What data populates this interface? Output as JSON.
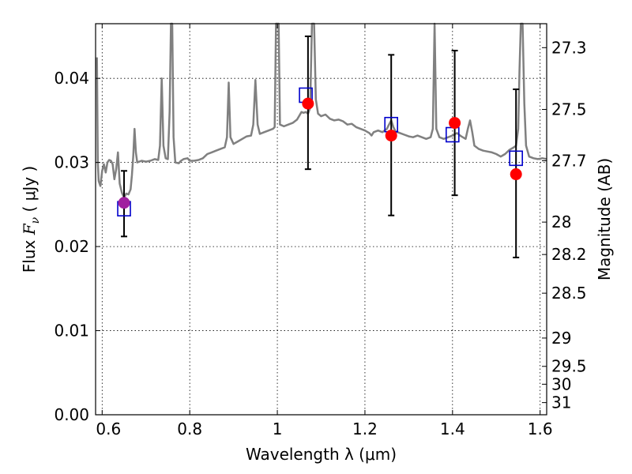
{
  "chart_data": {
    "type": "scatter",
    "xlabel": "Wavelength  λ (μm)",
    "ylabel_prefix": "Flux  ",
    "ylabel_symbol": "F",
    "ylabel_subscript": "ν",
    "ylabel_suffix": "  ( μJy )",
    "right_ylabel": "Magnitude (AB)",
    "xlim": [
      0.585,
      1.615
    ],
    "ylim": [
      0.0,
      0.0465
    ],
    "x_ticks": [
      {
        "value": 0.6,
        "label": ""
      },
      {
        "value": 0.8,
        "label": "0.8"
      },
      {
        "value": 1.0,
        "label": "1"
      },
      {
        "value": 1.2,
        "label": "1.2"
      },
      {
        "value": 1.4,
        "label": "1.4"
      },
      {
        "value": 1.6,
        "label": "1.6"
      }
    ],
    "extra_x_labels": [
      {
        "value": 0.6,
        "label": "0.6"
      }
    ],
    "y_ticks": [
      {
        "value": 0.0,
        "label": "0.00"
      },
      {
        "value": 0.01,
        "label": "0.01"
      },
      {
        "value": 0.02,
        "label": "0.02"
      },
      {
        "value": 0.03,
        "label": "0.03"
      },
      {
        "value": 0.04,
        "label": "0.04"
      }
    ],
    "right_ticks": [
      {
        "value": 27.3,
        "label": "27.3"
      },
      {
        "value": 27.5,
        "label": "27.5"
      },
      {
        "value": 27.7,
        "label": "27.7"
      },
      {
        "value": 28.0,
        "label": "28"
      },
      {
        "value": 28.2,
        "label": "28.2"
      },
      {
        "value": 28.5,
        "label": "28.5"
      },
      {
        "value": 29.0,
        "label": "29"
      },
      {
        "value": 29.5,
        "label": "29.5"
      },
      {
        "value": 30.0,
        "label": "30"
      },
      {
        "value": 31.0,
        "label": "31"
      }
    ],
    "grid": true,
    "colors": {
      "spectrum": "#808080",
      "observed": "#ff0000",
      "model": "#0000cc",
      "errorbar": "#000000",
      "overlap": "#a020a0"
    },
    "spectrum": [
      [
        0.588,
        0.0425
      ],
      [
        0.59,
        0.03
      ],
      [
        0.592,
        0.0278
      ],
      [
        0.596,
        0.0272
      ],
      [
        0.6,
        0.029
      ],
      [
        0.604,
        0.0298
      ],
      [
        0.608,
        0.0288
      ],
      [
        0.612,
        0.03
      ],
      [
        0.616,
        0.0303
      ],
      [
        0.62,
        0.0302
      ],
      [
        0.624,
        0.0298
      ],
      [
        0.628,
        0.028
      ],
      [
        0.632,
        0.0292
      ],
      [
        0.636,
        0.0312
      ],
      [
        0.64,
        0.0275
      ],
      [
        0.645,
        0.0264
      ],
      [
        0.65,
        0.0258
      ],
      [
        0.655,
        0.0263
      ],
      [
        0.66,
        0.0262
      ],
      [
        0.665,
        0.0268
      ],
      [
        0.668,
        0.0285
      ],
      [
        0.671,
        0.0308
      ],
      [
        0.674,
        0.034
      ],
      [
        0.677,
        0.0312
      ],
      [
        0.68,
        0.03
      ],
      [
        0.69,
        0.0302
      ],
      [
        0.7,
        0.0301
      ],
      [
        0.71,
        0.0302
      ],
      [
        0.72,
        0.0304
      ],
      [
        0.728,
        0.0303
      ],
      [
        0.732,
        0.032
      ],
      [
        0.736,
        0.04
      ],
      [
        0.74,
        0.032
      ],
      [
        0.745,
        0.0305
      ],
      [
        0.75,
        0.0304
      ],
      [
        0.754,
        0.036
      ],
      [
        0.757,
        0.047
      ],
      [
        0.76,
        0.047
      ],
      [
        0.763,
        0.033
      ],
      [
        0.767,
        0.03
      ],
      [
        0.775,
        0.0299
      ],
      [
        0.78,
        0.0302
      ],
      [
        0.786,
        0.0304
      ],
      [
        0.795,
        0.0305
      ],
      [
        0.8,
        0.0302
      ],
      [
        0.81,
        0.0302
      ],
      [
        0.82,
        0.0303
      ],
      [
        0.83,
        0.0305
      ],
      [
        0.84,
        0.031
      ],
      [
        0.85,
        0.0312
      ],
      [
        0.86,
        0.0314
      ],
      [
        0.87,
        0.0316
      ],
      [
        0.88,
        0.0318
      ],
      [
        0.885,
        0.033
      ],
      [
        0.889,
        0.0395
      ],
      [
        0.893,
        0.033
      ],
      [
        0.9,
        0.0322
      ],
      [
        0.91,
        0.0325
      ],
      [
        0.92,
        0.0328
      ],
      [
        0.93,
        0.0331
      ],
      [
        0.94,
        0.0332
      ],
      [
        0.945,
        0.0345
      ],
      [
        0.95,
        0.0398
      ],
      [
        0.955,
        0.0345
      ],
      [
        0.96,
        0.0334
      ],
      [
        0.97,
        0.0336
      ],
      [
        0.98,
        0.0338
      ],
      [
        0.99,
        0.034
      ],
      [
        0.994,
        0.0342
      ],
      [
        0.997,
        0.047
      ],
      [
        1.003,
        0.047
      ],
      [
        1.006,
        0.0345
      ],
      [
        1.015,
        0.0343
      ],
      [
        1.025,
        0.0345
      ],
      [
        1.035,
        0.0347
      ],
      [
        1.045,
        0.0351
      ],
      [
        1.055,
        0.036
      ],
      [
        1.06,
        0.0359
      ],
      [
        1.065,
        0.036
      ],
      [
        1.07,
        0.0358
      ],
      [
        1.075,
        0.0365
      ],
      [
        1.079,
        0.047
      ],
      [
        1.084,
        0.047
      ],
      [
        1.088,
        0.0375
      ],
      [
        1.093,
        0.0358
      ],
      [
        1.1,
        0.0355
      ],
      [
        1.11,
        0.0357
      ],
      [
        1.12,
        0.0352
      ],
      [
        1.13,
        0.035
      ],
      [
        1.14,
        0.0351
      ],
      [
        1.15,
        0.0349
      ],
      [
        1.16,
        0.0345
      ],
      [
        1.17,
        0.0346
      ],
      [
        1.18,
        0.0342
      ],
      [
        1.19,
        0.034
      ],
      [
        1.2,
        0.0338
      ],
      [
        1.21,
        0.0335
      ],
      [
        1.215,
        0.0332
      ],
      [
        1.22,
        0.0336
      ],
      [
        1.23,
        0.0338
      ],
      [
        1.24,
        0.0336
      ],
      [
        1.25,
        0.034
      ],
      [
        1.255,
        0.0345
      ],
      [
        1.26,
        0.035
      ],
      [
        1.265,
        0.0342
      ],
      [
        1.27,
        0.0337
      ],
      [
        1.28,
        0.0335
      ],
      [
        1.29,
        0.0333
      ],
      [
        1.3,
        0.0331
      ],
      [
        1.31,
        0.033
      ],
      [
        1.32,
        0.0332
      ],
      [
        1.33,
        0.033
      ],
      [
        1.34,
        0.0328
      ],
      [
        1.35,
        0.033
      ],
      [
        1.355,
        0.034
      ],
      [
        1.359,
        0.047
      ],
      [
        1.363,
        0.034
      ],
      [
        1.37,
        0.033
      ],
      [
        1.38,
        0.0328
      ],
      [
        1.39,
        0.033
      ],
      [
        1.4,
        0.0332
      ],
      [
        1.41,
        0.0335
      ],
      [
        1.42,
        0.0331
      ],
      [
        1.43,
        0.0328
      ],
      [
        1.435,
        0.034
      ],
      [
        1.44,
        0.035
      ],
      [
        1.445,
        0.0336
      ],
      [
        1.45,
        0.032
      ],
      [
        1.46,
        0.0316
      ],
      [
        1.47,
        0.0314
      ],
      [
        1.48,
        0.0313
      ],
      [
        1.49,
        0.0312
      ],
      [
        1.5,
        0.031
      ],
      [
        1.51,
        0.0307
      ],
      [
        1.52,
        0.031
      ],
      [
        1.53,
        0.0315
      ],
      [
        1.54,
        0.0318
      ],
      [
        1.545,
        0.032
      ],
      [
        1.55,
        0.034
      ],
      [
        1.553,
        0.041
      ],
      [
        1.556,
        0.047
      ],
      [
        1.56,
        0.047
      ],
      [
        1.564,
        0.037
      ],
      [
        1.568,
        0.032
      ],
      [
        1.575,
        0.0307
      ],
      [
        1.585,
        0.0305
      ],
      [
        1.595,
        0.0304
      ],
      [
        1.605,
        0.0305
      ],
      [
        1.615,
        0.0304
      ]
    ],
    "observed": [
      {
        "x": 0.65,
        "y": 0.0252,
        "yerr_low": 0.004,
        "yerr_high": 0.0038
      },
      {
        "x": 1.07,
        "y": 0.037,
        "yerr_low": 0.0078,
        "yerr_high": 0.008
      },
      {
        "x": 1.26,
        "y": 0.0332,
        "yerr_low": 0.0095,
        "yerr_high": 0.0096
      },
      {
        "x": 1.405,
        "y": 0.0347,
        "yerr_low": 0.0086,
        "yerr_high": 0.0086
      },
      {
        "x": 1.545,
        "y": 0.0286,
        "yerr_low": 0.0099,
        "yerr_high": 0.0101
      }
    ],
    "model": [
      {
        "x": 0.65,
        "y": 0.0245
      },
      {
        "x": 1.065,
        "y": 0.038
      },
      {
        "x": 1.26,
        "y": 0.0345
      },
      {
        "x": 1.4,
        "y": 0.0333
      },
      {
        "x": 1.545,
        "y": 0.0305
      }
    ]
  }
}
